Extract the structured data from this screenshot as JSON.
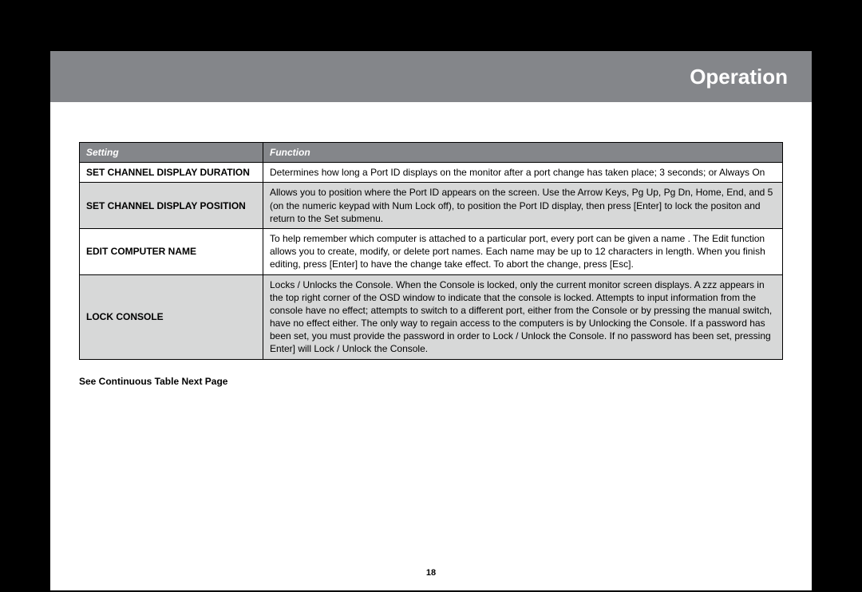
{
  "header": {
    "title": "Operation"
  },
  "table": {
    "header": {
      "col1": "Setting",
      "col2": "Function"
    },
    "rows": [
      {
        "setting": "SET CHANNEL DISPLAY DURATION",
        "function": "Determines how long a Port ID displays on the monitor after a port change has taken place; 3 seconds; or Always On"
      },
      {
        "setting": "SET CHANNEL DISPLAY POSITION",
        "function": "Allows you to position where the Port ID appears on the screen.  Use the Arrow Keys, Pg Up, Pg Dn, Home, End, and 5 (on the numeric keypad with Num Lock off), to position the Port ID display, then press [Enter] to lock the positon and return to the Set submenu."
      },
      {
        "setting": "EDIT COMPUTER NAME",
        "function": "To help remember which computer is attached to a particular port, every port can be given a name . The Edit function allows you to create, modify, or delete port names.  Each name may be up to 12 characters in length.  When you finish editing, press [Enter] to have the change take effect.  To abort the change, press [Esc]."
      },
      {
        "setting": "LOCK CONSOLE",
        "function": "Locks / Unlocks the Console.  When the Console is locked, only the current monitor screen displays. A zzz appears in the top right corner of the OSD window to indicate that the console is locked. Attempts to input information from the console have no effect; attempts to switch to a different port, either from the Console or by pressing the manual switch, have no effect either.  The only way to regain access to the computers is by Unlocking the Console.  If a password has been set, you must provide the password in order to Lock / Unlock the Console.  If no password has been set, pressing Enter] will Lock / Unlock the Console."
      }
    ]
  },
  "footnote": "See Continuous Table Next Page",
  "page_number": "18"
}
